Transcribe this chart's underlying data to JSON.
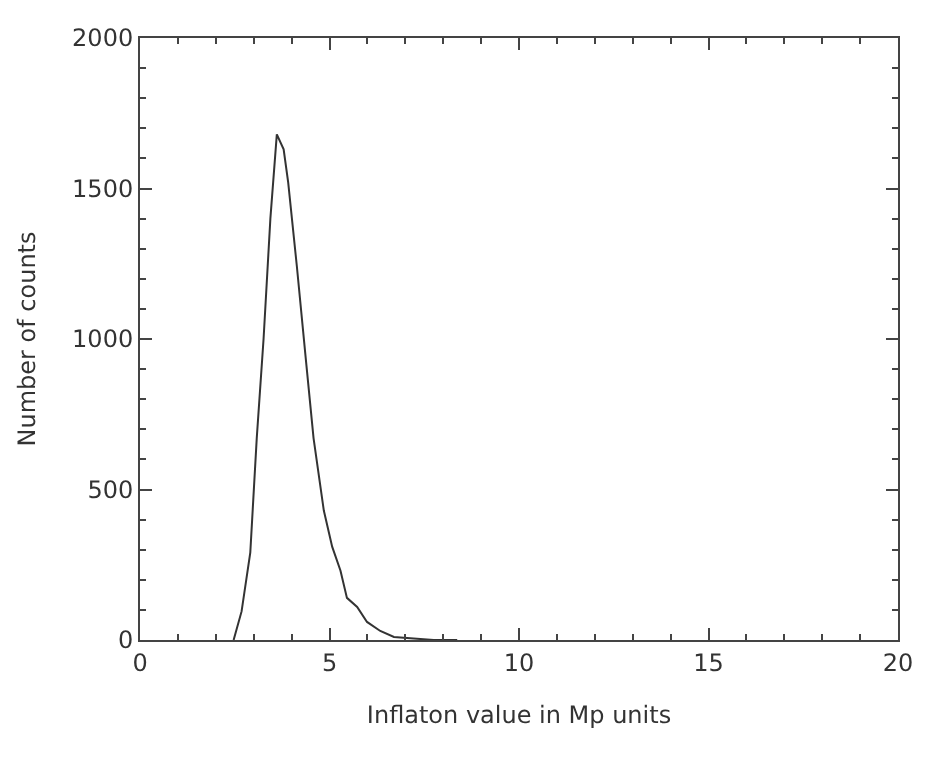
{
  "chart_data": {
    "type": "line",
    "xlabel": "Inflaton value in Mp units",
    "ylabel": "Number of counts",
    "x": [
      2.47,
      2.68,
      2.91,
      3.08,
      3.26,
      3.44,
      3.61,
      3.79,
      3.91,
      4.14,
      4.37,
      4.58,
      4.85,
      5.07,
      5.29,
      5.46,
      5.73,
      5.99,
      6.34,
      6.7,
      7.22,
      7.75,
      8.37
    ],
    "series": [
      {
        "color": "#333333",
        "values": [
          0,
          95,
          290,
          670,
          1000,
          1400,
          1680,
          1630,
          1520,
          1240,
          940,
          670,
          430,
          310,
          230,
          140,
          110,
          60,
          30,
          10,
          5,
          0,
          0
        ]
      }
    ],
    "xlim": [
      0,
      20
    ],
    "xticks": [
      0,
      5,
      10,
      15,
      20
    ],
    "ylim": [
      0,
      2000
    ],
    "yticks": [
      0,
      500,
      1000,
      1500,
      2000
    ],
    "grid": false,
    "legend": false,
    "marker": "none",
    "line_style": "solid"
  }
}
